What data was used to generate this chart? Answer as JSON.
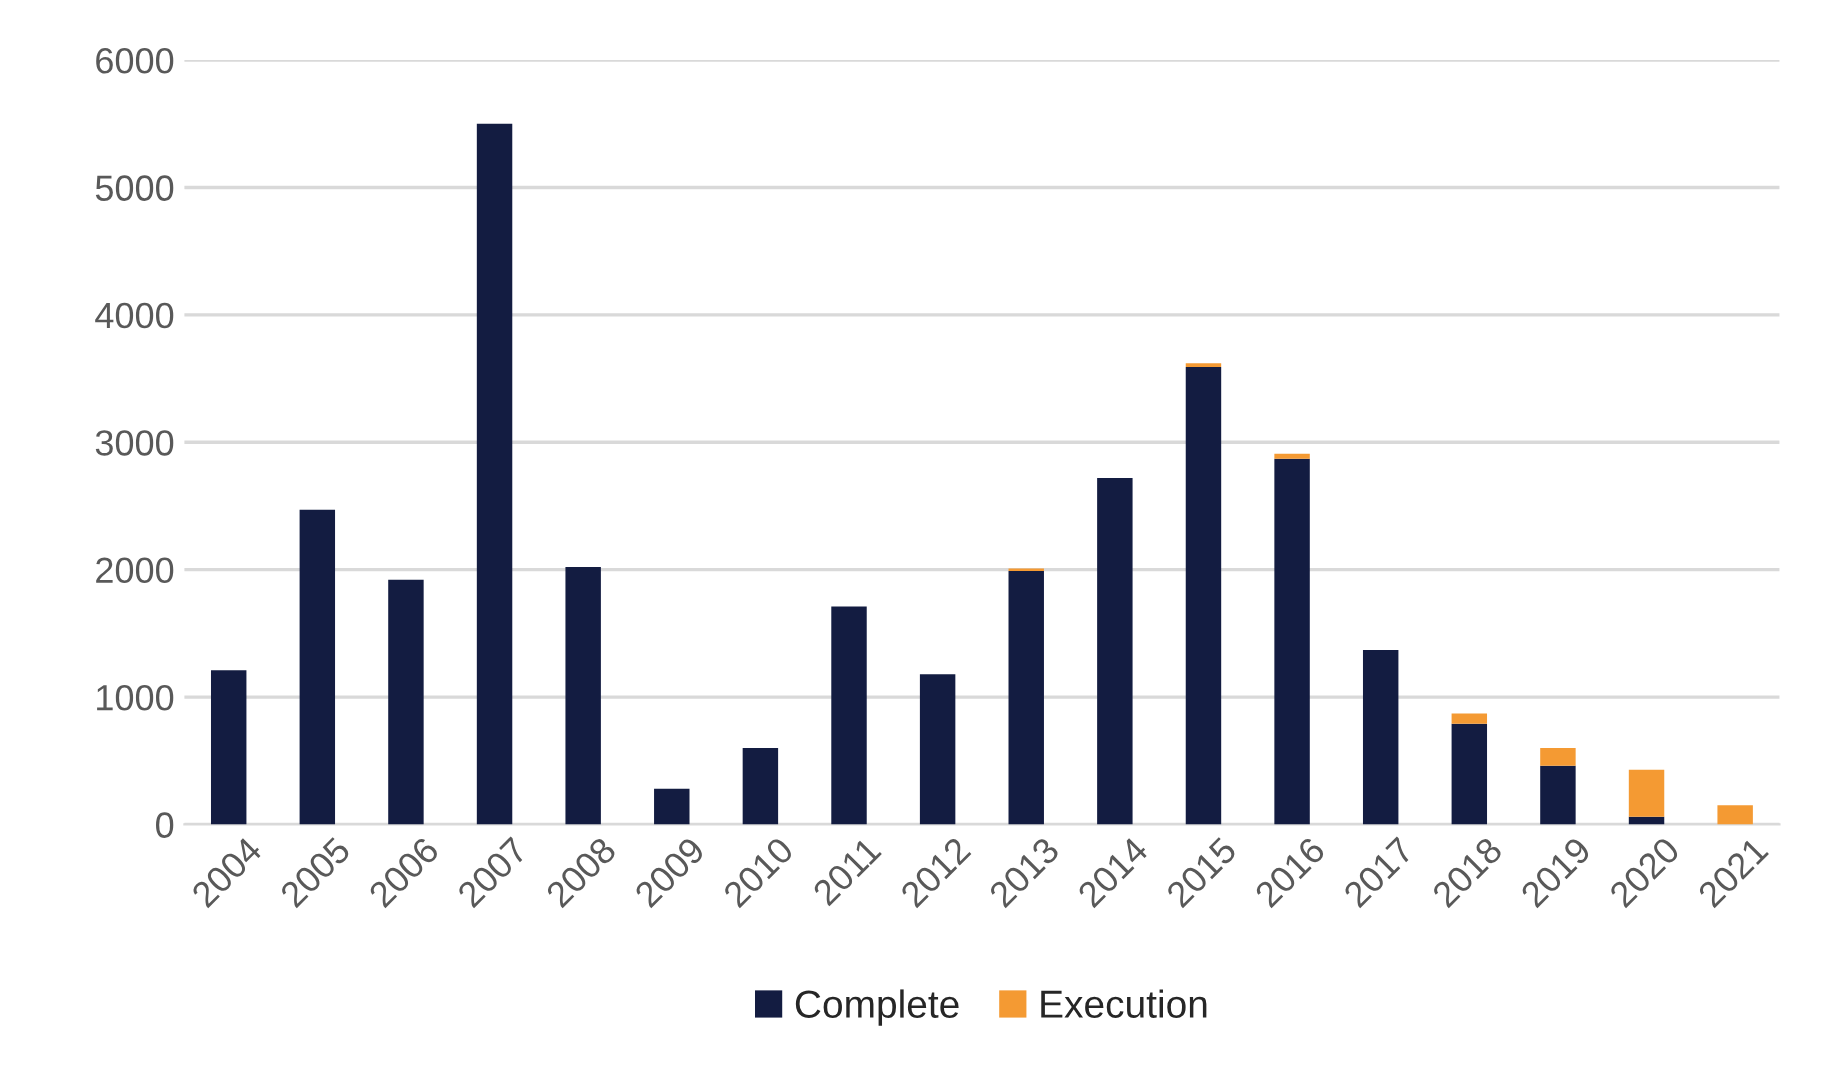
{
  "chart_data": {
    "type": "bar",
    "stacked": true,
    "categories": [
      "2004",
      "2005",
      "2006",
      "2007",
      "2008",
      "2009",
      "2010",
      "2011",
      "2012",
      "2013",
      "2014",
      "2015",
      "2016",
      "2017",
      "2018",
      "2019",
      "2020",
      "2021"
    ],
    "series": [
      {
        "name": "Complete",
        "color": "#131c41",
        "values": [
          1210,
          2470,
          1920,
          5500,
          2020,
          280,
          600,
          1710,
          1180,
          1990,
          2720,
          3590,
          2870,
          1370,
          790,
          460,
          60,
          null
        ]
      },
      {
        "name": "Execution",
        "color": "#f49a33",
        "values": [
          null,
          null,
          null,
          null,
          null,
          null,
          null,
          null,
          null,
          20,
          null,
          30,
          40,
          null,
          80,
          140,
          370,
          150
        ]
      }
    ],
    "ylim": [
      0,
      6000
    ],
    "yticks": [
      0,
      1000,
      2000,
      3000,
      4000,
      5000,
      6000
    ],
    "grid": "y",
    "legend": "bottom"
  }
}
